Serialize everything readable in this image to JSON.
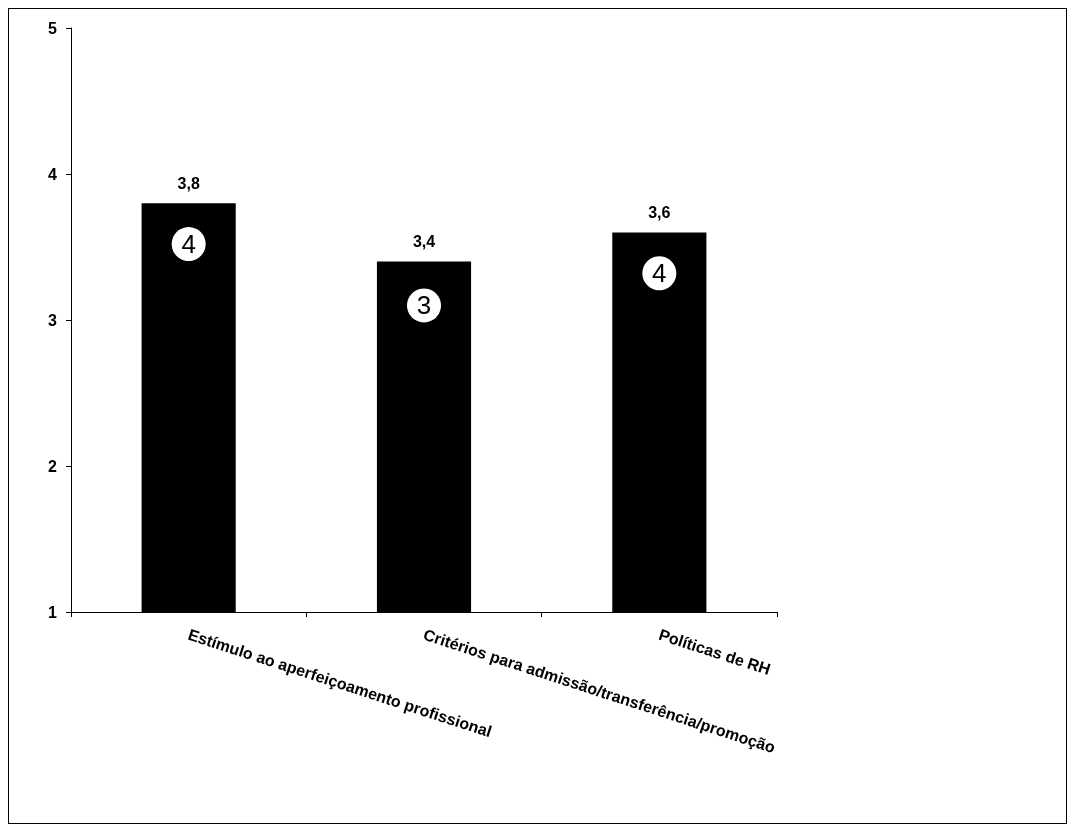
{
  "chart_data": {
    "type": "bar",
    "categories": [
      "Estímulo ao aperfeiçoamento profissional",
      "Critérios para admissão/transferência/promoção",
      "Políticas de RH"
    ],
    "values": [
      3.8,
      3.4,
      3.6
    ],
    "color": "#000000",
    "value_labels": [
      "3,8",
      "3,4",
      "3,6"
    ],
    "ylim": [
      1,
      5
    ],
    "yticks": [
      1,
      2,
      3,
      4,
      5
    ],
    "annotations": [
      {
        "text": "4",
        "x": "Estímulo ao aperfeiçoamento profissional",
        "y": 3.52
      },
      {
        "text": "3",
        "x": "Critérios para admissão/transferência/promoção",
        "y": 3.1
      },
      {
        "text": "4",
        "x": "Políticas de RH",
        "y": 3.32
      }
    ]
  }
}
